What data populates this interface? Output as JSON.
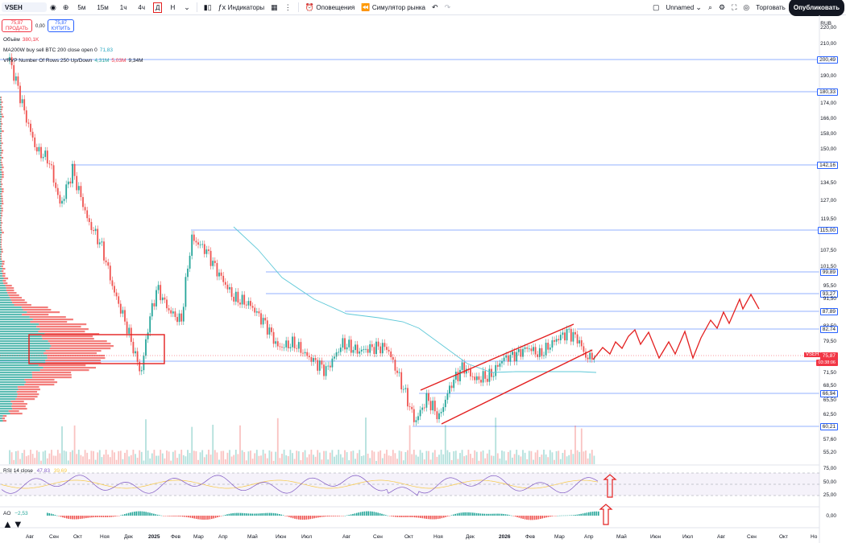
{
  "toolbar": {
    "symbol": "VSEH",
    "timeframes": [
      "5м",
      "15м",
      "1ч",
      "4ч",
      "Д",
      "Н"
    ],
    "active_timeframe": "Д",
    "indicators_label": "Индикаторы",
    "alerts_label": "Оповещения",
    "simulator_label": "Симулятор рынка",
    "layout_name": "Unnamed",
    "trade_label": "Торговать",
    "publish_label": "Опубликовать"
  },
  "trade": {
    "sell_price": "75,87",
    "sell_label": "ПРОДАТЬ",
    "spread": "0,00",
    "buy_price": "75,87",
    "buy_label": "КУПИТЬ"
  },
  "legends": {
    "volume_label": "Объём",
    "volume_value": "380,1K",
    "ma_label": "MA200W buy sell BTC 200 close open 0",
    "ma_value": "71,83",
    "vrvp_label": "VRVP Number Of Rows 250 Up/Down",
    "vrvp_v1": "4,31M",
    "vrvp_v2": "5,03M",
    "vrvp_v3": "9,34M",
    "rsi_label": "RSI 14 close",
    "rsi_v1": "47,83",
    "rsi_v2": "39,69",
    "ao_label": "AO",
    "ao_value": "−2,53"
  },
  "price_axis": {
    "currency": "RUB",
    "ticks": [
      "220,00",
      "210,00",
      "200,49",
      "190,00",
      "180,33",
      "174,00",
      "166,00",
      "158,00",
      "150,00",
      "142,16",
      "134,50",
      "127,00",
      "119,50",
      "115,00",
      "107,50",
      "101,50",
      "99,89",
      "95,50",
      "93,27",
      "91,50",
      "87,89",
      "83,50",
      "82,74",
      "79,50",
      "75,87",
      "74,16",
      "71,50",
      "68,50",
      "66,94",
      "65,50",
      "62,50",
      "60,21",
      "57,60",
      "55,20"
    ],
    "current_price": "75,87",
    "countdown": "03:38:06",
    "symbol_tag": "VSEH"
  },
  "rsi_axis": [
    "75,00",
    "50,00",
    "25,00"
  ],
  "ao_axis": [
    "0,00"
  ],
  "time_axis": [
    "Авг",
    "Сен",
    "Окт",
    "Ноя",
    "Дек",
    "2025",
    "Фев",
    "Мар",
    "Апр",
    "Май",
    "Июн",
    "Июл",
    "Авг",
    "Сен",
    "Окт",
    "Ноя",
    "Дек",
    "2026",
    "Фев",
    "Мар",
    "Апр",
    "Май",
    "Июн",
    "Июл",
    "Авг",
    "Сен",
    "Окт",
    "Но"
  ],
  "colors": {
    "up": "#26a69a",
    "down": "#ef5350",
    "levels": "#2962ff",
    "annotation": "#e32020",
    "ma": "#5ec8d8"
  }
}
